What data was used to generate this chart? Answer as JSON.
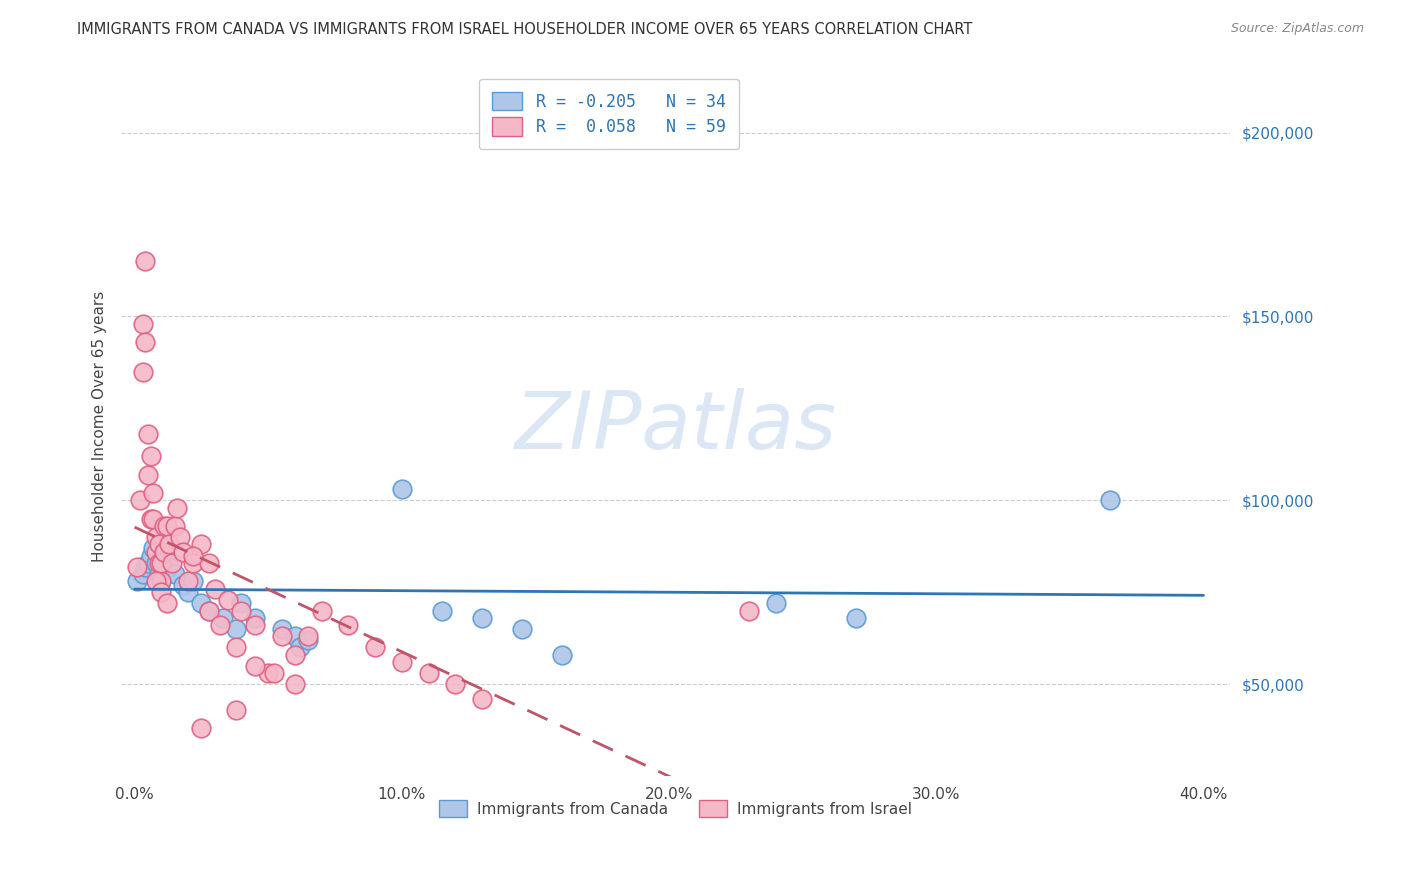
{
  "title": "IMMIGRANTS FROM CANADA VS IMMIGRANTS FROM ISRAEL HOUSEHOLDER INCOME OVER 65 YEARS CORRELATION CHART",
  "source": "Source: ZipAtlas.com",
  "ylabel": "Householder Income Over 65 years",
  "xlabel_ticks": [
    "0.0%",
    "10.0%",
    "20.0%",
    "30.0%",
    "40.0%"
  ],
  "xlabel_vals": [
    0.0,
    0.1,
    0.2,
    0.3,
    0.4
  ],
  "ylabel_ticks": [
    "$50,000",
    "$100,000",
    "$150,000",
    "$200,000"
  ],
  "ylabel_vals": [
    50000,
    100000,
    150000,
    200000
  ],
  "xlim": [
    -0.005,
    0.41
  ],
  "ylim": [
    25000,
    215000
  ],
  "canada_R": -0.205,
  "canada_N": 34,
  "israel_R": 0.058,
  "israel_N": 59,
  "canada_color": "#AEC6E8",
  "canada_edge_color": "#5B9BD5",
  "canada_line_color": "#2E75B6",
  "israel_color": "#F4B8C8",
  "israel_edge_color": "#E06080",
  "israel_line_color": "#C0556A",
  "watermark": "ZIPatlas",
  "canada_x": [
    0.001,
    0.003,
    0.004,
    0.005,
    0.006,
    0.007,
    0.008,
    0.009,
    0.01,
    0.011,
    0.012,
    0.013,
    0.015,
    0.018,
    0.02,
    0.022,
    0.025,
    0.028,
    0.033,
    0.038,
    0.04,
    0.045,
    0.055,
    0.06,
    0.062,
    0.065,
    0.1,
    0.115,
    0.13,
    0.145,
    0.16,
    0.24,
    0.27,
    0.365
  ],
  "canada_y": [
    78000,
    80000,
    82000,
    83000,
    85000,
    87000,
    83000,
    80000,
    78000,
    88000,
    85000,
    82000,
    80000,
    77000,
    75000,
    78000,
    72000,
    70000,
    68000,
    65000,
    72000,
    68000,
    65000,
    63000,
    60000,
    62000,
    103000,
    70000,
    68000,
    65000,
    58000,
    72000,
    68000,
    100000
  ],
  "israel_x": [
    0.001,
    0.002,
    0.003,
    0.003,
    0.004,
    0.004,
    0.005,
    0.005,
    0.006,
    0.006,
    0.007,
    0.007,
    0.008,
    0.008,
    0.009,
    0.009,
    0.01,
    0.01,
    0.011,
    0.011,
    0.012,
    0.013,
    0.014,
    0.015,
    0.016,
    0.017,
    0.018,
    0.02,
    0.022,
    0.025,
    0.028,
    0.03,
    0.035,
    0.038,
    0.04,
    0.045,
    0.05,
    0.055,
    0.06,
    0.065,
    0.07,
    0.08,
    0.09,
    0.1,
    0.11,
    0.12,
    0.13,
    0.008,
    0.01,
    0.012,
    0.022,
    0.028,
    0.032,
    0.038,
    0.045,
    0.052,
    0.06,
    0.23,
    0.025
  ],
  "israel_y": [
    82000,
    100000,
    135000,
    148000,
    165000,
    143000,
    118000,
    107000,
    95000,
    112000,
    95000,
    102000,
    90000,
    86000,
    83000,
    88000,
    78000,
    83000,
    93000,
    86000,
    93000,
    88000,
    83000,
    93000,
    98000,
    90000,
    86000,
    78000,
    83000,
    88000,
    83000,
    76000,
    73000,
    43000,
    70000,
    66000,
    53000,
    63000,
    58000,
    63000,
    70000,
    66000,
    60000,
    56000,
    53000,
    50000,
    46000,
    78000,
    75000,
    72000,
    85000,
    70000,
    66000,
    60000,
    55000,
    53000,
    50000,
    70000,
    38000
  ]
}
